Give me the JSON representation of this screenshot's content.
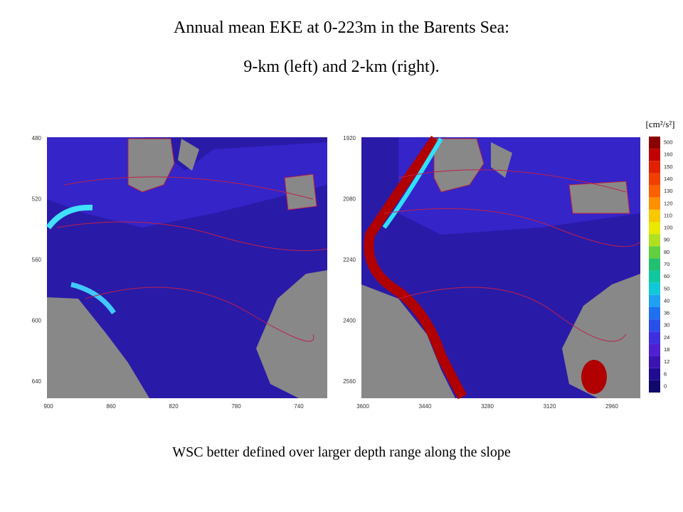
{
  "title": [
    "Annual mean EKE at 0-223m in the Barents Sea:",
    "9-km (left) and 2-km (right)."
  ],
  "maps": [
    {
      "yticks": [
        "480",
        "520",
        "560",
        "600",
        "640"
      ],
      "xticks": [
        "900",
        "860",
        "820",
        "780",
        "740"
      ]
    },
    {
      "yticks": [
        "1920",
        "2080",
        "2240",
        "2400",
        "2560"
      ],
      "xticks": [
        "3600",
        "3440",
        "3280",
        "3120",
        "2960"
      ]
    }
  ],
  "colorbar": {
    "unit": "[cm²/s²]",
    "labels": [
      "500",
      "160",
      "150",
      "140",
      "130",
      "120",
      "110",
      "100",
      "90",
      "80",
      "70",
      "60",
      "50",
      "40",
      "36",
      "30",
      "24",
      "18",
      "12",
      "6",
      "0"
    ],
    "colors": [
      "#8b0000",
      "#c00000",
      "#e02000",
      "#f04000",
      "#f86000",
      "#fc9000",
      "#f8c800",
      "#e8e800",
      "#b0e020",
      "#60d040",
      "#20c070",
      "#10c8a0",
      "#10c8d8",
      "#20a0f0",
      "#2070f0",
      "#2850e8",
      "#3c30e0",
      "#5020d0",
      "#3a14b0",
      "#200c90",
      "#10086a"
    ]
  },
  "caption": "WSC better defined over larger depth range along the slope"
}
